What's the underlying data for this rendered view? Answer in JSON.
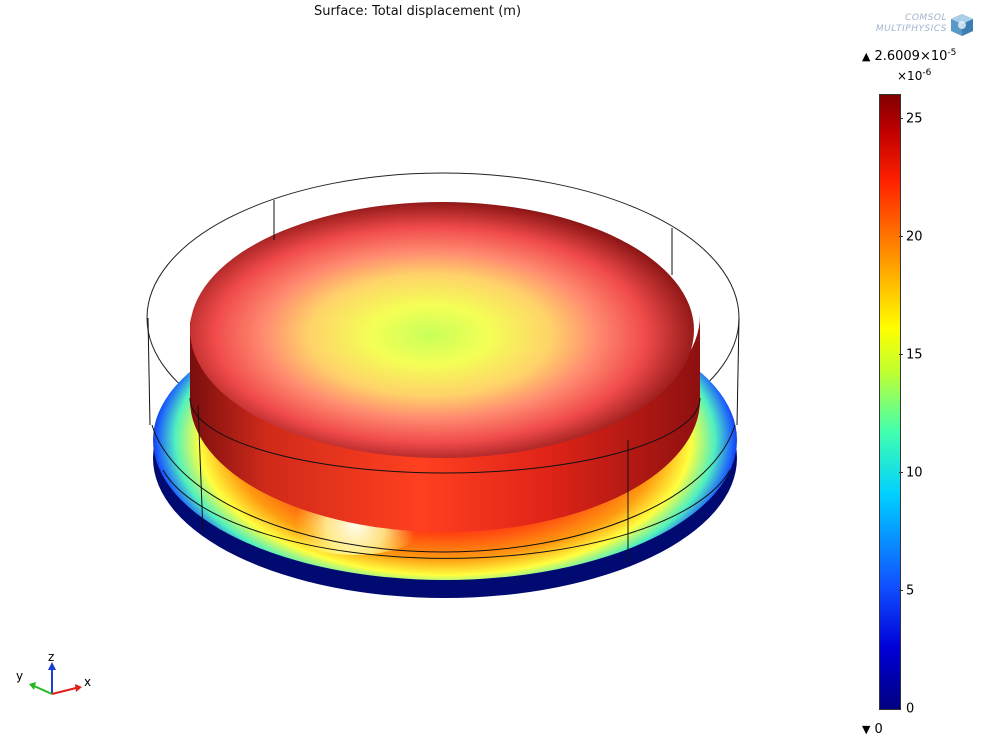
{
  "plot": {
    "title": "Surface: Total displacement (m)"
  },
  "logo": {
    "line1": "COMSOL",
    "line2": "MULTIPHYSICS"
  },
  "colorbar": {
    "max_value": "2.6009×10",
    "max_exp": "-5",
    "scale_factor": "×10",
    "scale_exp": "-6",
    "min_value": "0",
    "ticks": [
      "25",
      "20",
      "15",
      "10",
      "5",
      "0"
    ],
    "colormap": "rainbow"
  },
  "axes": {
    "x": "x",
    "y": "y",
    "z": "z"
  },
  "colors": {
    "axis_x": "#e0201b",
    "axis_y": "#22b822",
    "axis_z": "#1a3cd8"
  }
}
